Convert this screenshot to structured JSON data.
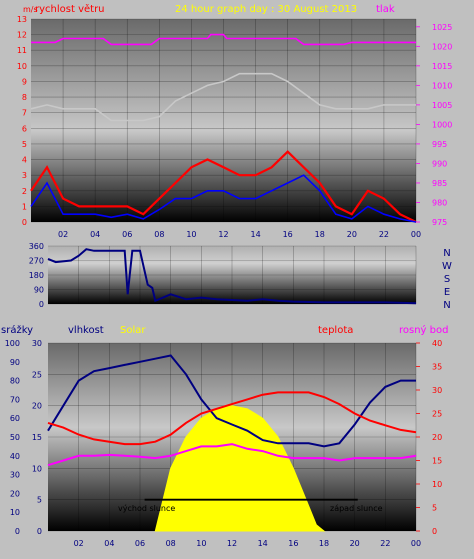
{
  "chart_data": [
    {
      "type": "line",
      "title": "24 hour graph day : 30 August 2013",
      "left_label": "rychlost větru",
      "right_label": "tlak",
      "left_unit": "m/s",
      "y_left_ticks": [
        "0",
        "1",
        "2",
        "3",
        "4",
        "5",
        "6",
        "7",
        "8",
        "9",
        "10",
        "11",
        "12",
        "13"
      ],
      "y_left_lim": [
        0,
        13
      ],
      "y_right_ticks": [
        "975",
        "980",
        "985",
        "990",
        "995",
        "1000",
        "1005",
        "1010",
        "1015",
        "1020",
        "1025"
      ],
      "y_right_lim": [
        975,
        1027
      ],
      "x_ticks": [
        "02",
        "04",
        "06",
        "08",
        "10",
        "12",
        "14",
        "16",
        "18",
        "20",
        "22",
        "00"
      ],
      "x_range_hours": [
        0,
        24
      ],
      "series": [
        {
          "color": "#ff00ff",
          "axis": "right",
          "x": [
            0,
            1.5,
            2.0,
            4.5,
            5.0,
            7.5,
            8.0,
            11.0,
            11.2,
            12.0,
            12.2,
            16.5,
            17.0,
            19.5,
            20.0,
            24.0
          ],
          "values": [
            1021,
            1021,
            1022,
            1022,
            1020.5,
            1020.5,
            1022,
            1022,
            1023,
            1023,
            1022,
            1022,
            1020.5,
            1020.5,
            1021,
            1021
          ]
        },
        {
          "color": "#c8c8c8",
          "axis": "right",
          "x": [
            0,
            1,
            2,
            4,
            5,
            7,
            8,
            9,
            10,
            11,
            12,
            13,
            14,
            15,
            16,
            17,
            18,
            19,
            20,
            21,
            22,
            23,
            24
          ],
          "values": [
            1004,
            1005,
            1004,
            1004,
            1001,
            1001,
            1002,
            1006,
            1008,
            1010,
            1011,
            1013,
            1013,
            1013,
            1011,
            1008,
            1005,
            1004,
            1004,
            1004,
            1005,
            1005,
            1005
          ]
        },
        {
          "color": "#ff0000",
          "axis": "left",
          "x": [
            0,
            1,
            2,
            3,
            4,
            5,
            6,
            7,
            8,
            9,
            10,
            11,
            12,
            13,
            14,
            15,
            16,
            17,
            18,
            19,
            20,
            21,
            22,
            23,
            24
          ],
          "values": [
            2,
            3.5,
            1.5,
            1,
            1,
            1,
            1,
            0.5,
            1.5,
            2.5,
            3.5,
            4,
            3.5,
            3,
            3,
            3.5,
            4.5,
            3.5,
            2.5,
            1,
            0.5,
            2,
            1.5,
            0.5,
            0
          ]
        },
        {
          "color": "#0000ff",
          "axis": "left",
          "x": [
            0,
            1,
            2,
            3,
            4,
            5,
            6,
            7,
            8,
            9,
            10,
            11,
            12,
            13,
            14,
            15,
            16,
            17,
            18,
            19,
            20,
            21,
            22,
            23,
            24
          ],
          "values": [
            1,
            2.5,
            0.5,
            0.5,
            0.5,
            0.3,
            0.5,
            0.2,
            0.8,
            1.5,
            1.5,
            2,
            2,
            1.5,
            1.5,
            2,
            2.5,
            3,
            2,
            0.5,
            0.2,
            1,
            0.5,
            0.2,
            0
          ]
        }
      ]
    },
    {
      "type": "line",
      "y_ticks": [
        "360",
        "270",
        "180",
        "90",
        "0"
      ],
      "y_lim": [
        0,
        360
      ],
      "compass": [
        "N",
        "W",
        "S",
        "E",
        "N"
      ],
      "series": [
        {
          "color": "#000080",
          "x": [
            0,
            0.5,
            1.5,
            2.0,
            2.5,
            3.0,
            5.0,
            5.2,
            5.5,
            6.0,
            6.5,
            6.8,
            7.0,
            7.5,
            8.0,
            9.0,
            10.0,
            11.0,
            12.0,
            13.0,
            14.0,
            15.0,
            16.0,
            18.0,
            20.0,
            22.0,
            24.0
          ],
          "values": [
            280,
            260,
            270,
            300,
            340,
            330,
            330,
            60,
            330,
            330,
            120,
            100,
            20,
            40,
            60,
            30,
            40,
            30,
            25,
            20,
            30,
            20,
            15,
            10,
            10,
            10,
            5
          ]
        }
      ]
    },
    {
      "type": "line",
      "labels": {
        "rain": "srážky",
        "humidity": "vlhkost",
        "solar": "Solar",
        "temp": "teplota",
        "dew": "rosný bod"
      },
      "rain_ticks": [
        "0",
        "10",
        "20",
        "30",
        "40",
        "50",
        "60",
        "70",
        "80",
        "90",
        "100"
      ],
      "humidity_ticks": [
        "0",
        "5",
        "10",
        "15",
        "20",
        "25",
        "30"
      ],
      "temp_ticks": [
        "0",
        "5",
        "10",
        "15",
        "20",
        "25",
        "30",
        "35",
        "40"
      ],
      "humidity_lim": [
        0,
        30
      ],
      "temp_lim": [
        0,
        40
      ],
      "x_ticks": [
        "02",
        "04",
        "06",
        "08",
        "10",
        "12",
        "14",
        "16",
        "18",
        "20",
        "22",
        "00"
      ],
      "sunrise_label": "východ slunce",
      "sunset_label": "západ slunce",
      "sun_line_hours": [
        6.3,
        20.2
      ],
      "sun_line_value": 5,
      "solar": {
        "color": "#ffff00",
        "x": [
          7.0,
          7.5,
          8.0,
          9.0,
          10.0,
          11.0,
          12.0,
          13.0,
          14.0,
          15.0,
          16.0,
          17.0,
          17.5,
          18.0
        ],
        "values": [
          0,
          5,
          10,
          15,
          18,
          19.5,
          20,
          19.5,
          18,
          15,
          10,
          4,
          1,
          0
        ]
      },
      "series": [
        {
          "name": "vlhkost",
          "color": "#000080",
          "axis": "humidity",
          "x": [
            0,
            1,
            2,
            3,
            4,
            5,
            6,
            7,
            8,
            9,
            10,
            11,
            12,
            13,
            14,
            15,
            16,
            17,
            18,
            19,
            20,
            21,
            22,
            23,
            24
          ],
          "values": [
            16,
            20,
            24,
            25.5,
            26,
            26.5,
            27,
            27.5,
            28,
            25,
            21,
            18,
            17,
            16,
            14.5,
            14,
            14,
            14,
            13.5,
            14,
            17,
            20.5,
            23,
            24,
            24
          ]
        },
        {
          "name": "teplota",
          "color": "#ff0000",
          "axis": "temp",
          "x": [
            0,
            1,
            2,
            3,
            4,
            5,
            6,
            7,
            8,
            9,
            10,
            11,
            12,
            13,
            14,
            15,
            16,
            17,
            18,
            19,
            20,
            21,
            22,
            23,
            24
          ],
          "values": [
            23,
            22,
            20.5,
            19.5,
            19,
            18.5,
            18.5,
            19,
            20.5,
            23,
            25,
            26,
            27,
            28,
            29,
            29.5,
            29.5,
            29.5,
            28.5,
            27,
            25,
            23.5,
            22.5,
            21.5,
            21
          ]
        },
        {
          "name": "rosný bod",
          "color": "#ff00ff",
          "axis": "temp",
          "x": [
            0,
            1,
            2,
            3,
            4,
            5,
            6,
            7,
            8,
            9,
            10,
            11,
            12,
            13,
            14,
            15,
            16,
            17,
            18,
            19,
            20,
            21,
            22,
            23,
            24
          ],
          "values": [
            14,
            15,
            16,
            16,
            16.2,
            16,
            15.8,
            15.5,
            16,
            17,
            18,
            18,
            18.5,
            17.5,
            17,
            16,
            15.5,
            15.5,
            15.5,
            15,
            15.5,
            15.5,
            15.5,
            15.5,
            16
          ]
        }
      ]
    }
  ]
}
